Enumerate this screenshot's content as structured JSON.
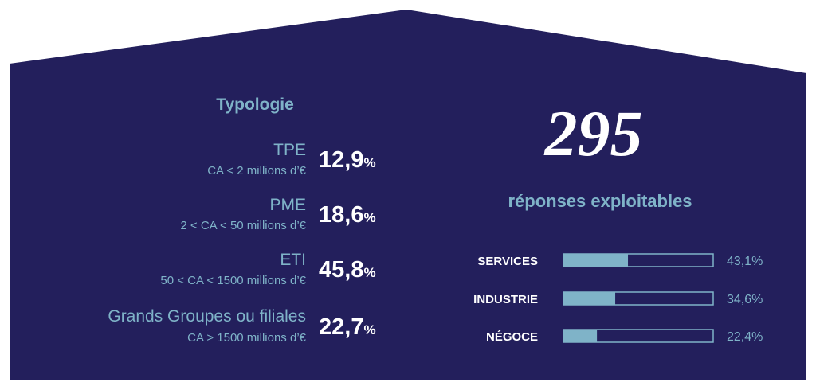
{
  "typology": {
    "title": "Typologie",
    "items": [
      {
        "name": "TPE",
        "detail": "CA < 2 millions d’€",
        "value": "12,9",
        "unit": "%"
      },
      {
        "name": "PME",
        "detail": "2 < CA < 50 millions d’€",
        "value": "18,6",
        "unit": "%"
      },
      {
        "name": "ETI",
        "detail": "50 < CA < 1500 millions d’€",
        "value": "45,8",
        "unit": "%"
      },
      {
        "name": "Grands Groupes ou filiales",
        "detail": "CA > 1500 millions d’€",
        "value": "22,7",
        "unit": "%"
      }
    ]
  },
  "responses": {
    "count": "295",
    "label": "réponses exploitables"
  },
  "chart_data": {
    "type": "bar",
    "orientation": "horizontal",
    "categories": [
      "SERVICES",
      "INDUSTRIE",
      "NÉGOCE"
    ],
    "values": [
      43.1,
      34.6,
      22.4
    ],
    "value_labels": [
      "43,1%",
      "34,6%",
      "22,4%"
    ],
    "xlim": [
      0,
      100
    ],
    "color": "#7fb3c8"
  }
}
